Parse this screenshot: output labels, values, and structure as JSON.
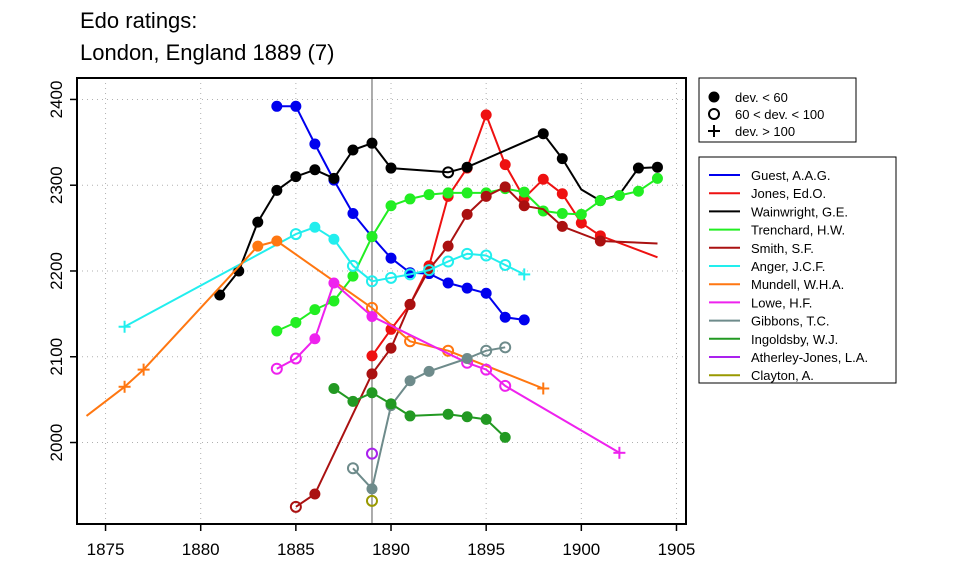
{
  "chart_data": {
    "type": "line",
    "title": "Edo ratings:",
    "subtitle": "London, England 1889 (7)",
    "xlabel": "",
    "ylabel": "",
    "xlim": [
      1873.5,
      1905.5
    ],
    "ylim": [
      1905,
      2425
    ],
    "x_ticks": [
      1875,
      1880,
      1885,
      1890,
      1895,
      1900,
      1905
    ],
    "y_ticks": [
      2000,
      2100,
      2200,
      2300,
      2400
    ],
    "reference_year": 1889,
    "grid": true,
    "deviation_legend": [
      {
        "marker": "filled",
        "label": "dev. < 60"
      },
      {
        "marker": "open",
        "label": "60 < dev. < 100"
      },
      {
        "marker": "plus",
        "label": "dev. > 100"
      }
    ],
    "series": [
      {
        "name": "Guest, A.A.G.",
        "color": "#0000ee",
        "points": [
          [
            1884,
            2392,
            "f"
          ],
          [
            1885,
            2392,
            "f"
          ],
          [
            1886,
            2348,
            "f"
          ],
          [
            1887,
            2306,
            "f"
          ],
          [
            1888,
            2267,
            "f"
          ],
          [
            1889,
            2240,
            "f"
          ],
          [
            1890,
            2215,
            "f"
          ],
          [
            1891,
            2198,
            "f"
          ],
          [
            1892,
            2197,
            "f"
          ],
          [
            1893,
            2186,
            "f"
          ],
          [
            1894,
            2180,
            "f"
          ],
          [
            1895,
            2174,
            "f"
          ],
          [
            1896,
            2146,
            "f"
          ],
          [
            1897,
            2143,
            "f"
          ]
        ]
      },
      {
        "name": "Jones, Ed.O.",
        "color": "#ee1111",
        "points": [
          [
            1889,
            2101,
            "f"
          ],
          [
            1890,
            2132,
            "f"
          ],
          [
            1891,
            2161,
            "f"
          ],
          [
            1892,
            2206,
            "f"
          ],
          [
            1893,
            2287,
            "f"
          ],
          [
            1894,
            2320,
            "f"
          ],
          [
            1895,
            2382,
            "f"
          ],
          [
            1896,
            2324,
            "f"
          ],
          [
            1897,
            2285,
            "f"
          ],
          [
            1898,
            2307,
            "f"
          ],
          [
            1899,
            2290,
            "f"
          ],
          [
            1900,
            2256,
            "f"
          ],
          [
            1901,
            2241,
            "f"
          ],
          [
            1904,
            2216,
            "n"
          ]
        ]
      },
      {
        "name": "Wainwright, G.E.",
        "color": "#000000",
        "points": [
          [
            1881,
            2172,
            "f"
          ],
          [
            1882,
            2200,
            "f"
          ],
          [
            1883,
            2257,
            "f"
          ],
          [
            1884,
            2294,
            "f"
          ],
          [
            1885,
            2310,
            "f"
          ],
          [
            1886,
            2318,
            "f"
          ],
          [
            1887,
            2308,
            "f"
          ],
          [
            1888,
            2341,
            "f"
          ],
          [
            1889,
            2349,
            "f"
          ],
          [
            1890,
            2320,
            "f"
          ],
          [
            1893,
            2315,
            "o"
          ],
          [
            1894,
            2321,
            "f"
          ],
          [
            1898,
            2360,
            "f"
          ],
          [
            1899,
            2331,
            "f"
          ],
          [
            1900,
            2295,
            "n"
          ],
          [
            1901,
            2282,
            "f"
          ],
          [
            1902,
            2289,
            "n"
          ],
          [
            1903,
            2320,
            "f"
          ],
          [
            1904,
            2321,
            "f"
          ]
        ]
      },
      {
        "name": "Trenchard, H.W.",
        "color": "#22ee22",
        "points": [
          [
            1884,
            2130,
            "f"
          ],
          [
            1885,
            2140,
            "f"
          ],
          [
            1886,
            2155,
            "f"
          ],
          [
            1887,
            2165,
            "f"
          ],
          [
            1888,
            2194,
            "f"
          ],
          [
            1889,
            2240,
            "f"
          ],
          [
            1890,
            2276,
            "f"
          ],
          [
            1891,
            2284,
            "f"
          ],
          [
            1892,
            2289,
            "f"
          ],
          [
            1893,
            2291,
            "f"
          ],
          [
            1894,
            2291,
            "f"
          ],
          [
            1895,
            2291,
            "f"
          ],
          [
            1896,
            2296,
            "f"
          ],
          [
            1897,
            2292,
            "f"
          ],
          [
            1898,
            2270,
            "f"
          ],
          [
            1899,
            2267,
            "f"
          ],
          [
            1900,
            2266,
            "f"
          ],
          [
            1901,
            2282,
            "f"
          ],
          [
            1902,
            2288,
            "f"
          ],
          [
            1903,
            2293,
            "f"
          ],
          [
            1904,
            2308,
            "f"
          ]
        ]
      },
      {
        "name": "Smith, S.F.",
        "color": "#aa1111",
        "points": [
          [
            1885,
            1925,
            "o"
          ],
          [
            1886,
            1940,
            "f"
          ],
          [
            1889,
            2080,
            "f"
          ],
          [
            1890,
            2110,
            "f"
          ],
          [
            1891,
            2161,
            "f"
          ],
          [
            1892,
            2202,
            "f"
          ],
          [
            1893,
            2229,
            "f"
          ],
          [
            1894,
            2266,
            "f"
          ],
          [
            1895,
            2287,
            "f"
          ],
          [
            1896,
            2298,
            "f"
          ],
          [
            1897,
            2276,
            "f"
          ],
          [
            1898,
            2272,
            "n"
          ],
          [
            1899,
            2252,
            "f"
          ],
          [
            1901,
            2235,
            "f"
          ],
          [
            1904,
            2232,
            "n"
          ]
        ]
      },
      {
        "name": "Anger, J.C.F.",
        "color": "#22eeee",
        "points": [
          [
            1876,
            2135,
            "p"
          ],
          [
            1885,
            2243,
            "o"
          ],
          [
            1886,
            2251,
            "f"
          ],
          [
            1887,
            2237,
            "f"
          ],
          [
            1888,
            2206,
            "o"
          ],
          [
            1889,
            2188,
            "o"
          ],
          [
            1890,
            2192,
            "o"
          ],
          [
            1891,
            2196,
            "o"
          ],
          [
            1892,
            2201,
            "o"
          ],
          [
            1893,
            2211,
            "o"
          ],
          [
            1894,
            2220,
            "o"
          ],
          [
            1895,
            2218,
            "o"
          ],
          [
            1896,
            2207,
            "o"
          ],
          [
            1897,
            2196,
            "p"
          ]
        ]
      },
      {
        "name": "Mundell, W.H.A.",
        "color": "#ff7711",
        "points": [
          [
            1874,
            2031,
            "n"
          ],
          [
            1876,
            2065,
            "p"
          ],
          [
            1877,
            2085,
            "p"
          ],
          [
            1883,
            2229,
            "f"
          ],
          [
            1884,
            2235,
            "f"
          ],
          [
            1889,
            2157,
            "o"
          ],
          [
            1891,
            2118,
            "o"
          ],
          [
            1893,
            2107,
            "o"
          ],
          [
            1898,
            2063,
            "p"
          ]
        ]
      },
      {
        "name": "Lowe, H.F.",
        "color": "#ee22ee",
        "points": [
          [
            1884,
            2086,
            "o"
          ],
          [
            1885,
            2098,
            "o"
          ],
          [
            1886,
            2121,
            "f"
          ],
          [
            1887,
            2186,
            "f"
          ],
          [
            1889,
            2147,
            "f"
          ],
          [
            1894,
            2093,
            "o"
          ],
          [
            1895,
            2085,
            "o"
          ],
          [
            1896,
            2066,
            "o"
          ],
          [
            1902,
            1988,
            "p"
          ]
        ]
      },
      {
        "name": "Gibbons, T.C.",
        "color": "#6e8b8b",
        "points": [
          [
            1888,
            1970,
            "o"
          ],
          [
            1889,
            1946,
            "f"
          ],
          [
            1890,
            2043,
            "f"
          ],
          [
            1891,
            2072,
            "f"
          ],
          [
            1892,
            2083,
            "f"
          ],
          [
            1894,
            2098,
            "f"
          ],
          [
            1895,
            2107,
            "o"
          ],
          [
            1896,
            2111,
            "o"
          ]
        ]
      },
      {
        "name": "Ingoldsby, W.J.",
        "color": "#229922",
        "points": [
          [
            1887,
            2063,
            "f"
          ],
          [
            1888,
            2048,
            "f"
          ],
          [
            1889,
            2058,
            "f"
          ],
          [
            1890,
            2045,
            "f"
          ],
          [
            1891,
            2031,
            "f"
          ],
          [
            1893,
            2033,
            "f"
          ],
          [
            1894,
            2030,
            "f"
          ],
          [
            1895,
            2027,
            "f"
          ],
          [
            1896,
            2006,
            "f"
          ]
        ]
      },
      {
        "name": "Atherley-Jones, L.A.",
        "color": "#aa22ee",
        "points": [
          [
            1889,
            1987,
            "o"
          ]
        ]
      },
      {
        "name": "Clayton, A.",
        "color": "#999900",
        "points": [
          [
            1889,
            1932,
            "o"
          ]
        ]
      }
    ]
  }
}
